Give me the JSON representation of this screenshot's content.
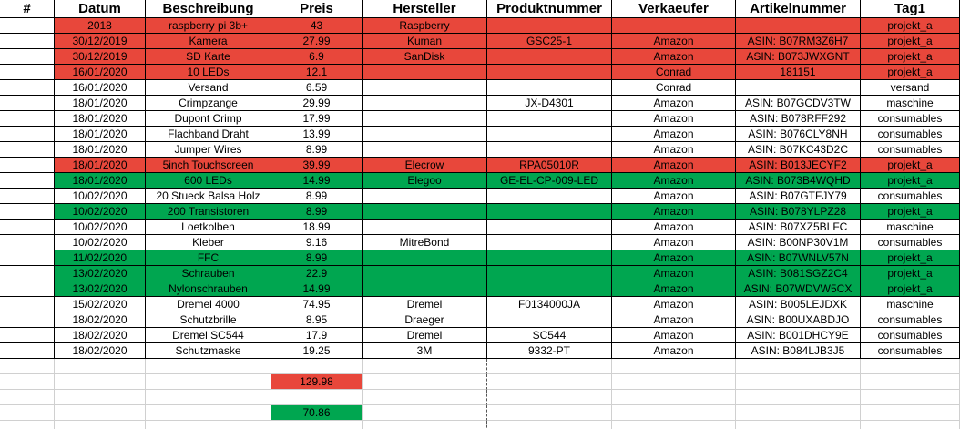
{
  "header": [
    "#",
    "Datum",
    "Beschreibung",
    "Preis",
    "Hersteller",
    "Produktnummer",
    "Verkaeufer",
    "Artikelnummer",
    "Tag1"
  ],
  "rows": [
    {
      "fill": "#e8473b",
      "cells": [
        "2018",
        "raspberry pi 3b+",
        43,
        "Raspberry",
        null,
        null,
        null,
        "projekt_a"
      ]
    },
    {
      "fill": "#e8473b",
      "cells": [
        "30/12/2019",
        "Kamera",
        27.99,
        "Kuman",
        "GSC25-1",
        "Amazon",
        "ASIN: B07RM3Z6H7",
        "projekt_a"
      ]
    },
    {
      "fill": "#e8473b",
      "cells": [
        "30/12/2019",
        "SD Karte",
        6.9,
        "SanDisk",
        null,
        "Amazon",
        "ASIN: B073JWXGNT",
        "projekt_a"
      ]
    },
    {
      "fill": "#e8473b",
      "cells": [
        "16/01/2020",
        "10 LEDs",
        12.1,
        null,
        null,
        "Conrad",
        "181151",
        "projekt_a"
      ]
    },
    {
      "fill": null,
      "cells": [
        "16/01/2020",
        "Versand",
        6.59,
        null,
        null,
        "Conrad",
        null,
        "versand"
      ]
    },
    {
      "fill": null,
      "cells": [
        "18/01/2020",
        "Crimpzange",
        29.99,
        null,
        "JX-D4301",
        "Amazon",
        "ASIN: B07GCDV3TW",
        "maschine"
      ]
    },
    {
      "fill": null,
      "cells": [
        "18/01/2020",
        "Dupont Crimp",
        17.99,
        null,
        null,
        "Amazon",
        "ASIN: B078RFF292",
        "consumables"
      ]
    },
    {
      "fill": null,
      "cells": [
        "18/01/2020",
        "Flachband Draht",
        13.99,
        null,
        null,
        "Amazon",
        "ASIN: B076CLY8NH",
        "consumables"
      ]
    },
    {
      "fill": null,
      "cells": [
        "18/01/2020",
        "Jumper Wires",
        8.99,
        null,
        null,
        "Amazon",
        "ASIN: B07KC43D2C",
        "consumables"
      ]
    },
    {
      "fill": "#e8473b",
      "cells": [
        "18/01/2020",
        "5inch Touchscreen",
        39.99,
        "Elecrow",
        "RPA05010R",
        "Amazon",
        "ASIN: B013JECYF2",
        "projekt_a"
      ]
    },
    {
      "fill": "#00a650",
      "cells": [
        "18/01/2020",
        "600 LEDs",
        14.99,
        "Elegoo",
        "GE-EL-CP-009-LED",
        "Amazon",
        "ASIN: B073B4WQHD",
        "projekt_a"
      ]
    },
    {
      "fill": null,
      "cells": [
        "10/02/2020",
        "20 Stueck Balsa Holz",
        8.99,
        null,
        null,
        "Amazon",
        "ASIN: B07GTFJY79",
        "consumables"
      ]
    },
    {
      "fill": "#00a650",
      "cells": [
        "10/02/2020",
        "200 Transistoren",
        8.99,
        null,
        null,
        "Amazon",
        "ASIN: B078YLPZ28",
        "projekt_a"
      ]
    },
    {
      "fill": null,
      "cells": [
        "10/02/2020",
        "Loetkolben",
        18.99,
        null,
        null,
        "Amazon",
        "ASIN: B07XZ5BLFC",
        "maschine"
      ]
    },
    {
      "fill": null,
      "cells": [
        "10/02/2020",
        "Kleber",
        9.16,
        "MitreBond",
        null,
        "Amazon",
        "ASIN: B00NP30V1M",
        "consumables"
      ]
    },
    {
      "fill": "#00a650",
      "cells": [
        "11/02/2020",
        "FFC",
        8.99,
        null,
        null,
        "Amazon",
        "ASIN: B07WNLV57N",
        "projekt_a"
      ]
    },
    {
      "fill": "#00a650",
      "cells": [
        "13/02/2020",
        "Schrauben",
        22.9,
        null,
        null,
        "Amazon",
        "ASIN: B081SGZ2C4",
        "projekt_a"
      ]
    },
    {
      "fill": "#00a650",
      "cells": [
        "13/02/2020",
        "Nylonschrauben",
        14.99,
        null,
        null,
        "Amazon",
        "ASIN: B07WDVW5CX",
        "projekt_a"
      ]
    },
    {
      "fill": null,
      "cells": [
        "15/02/2020",
        "Dremel 4000",
        74.95,
        "Dremel",
        "F0134000JA",
        "Amazon",
        "ASIN: B005LEJDXK",
        "maschine"
      ]
    },
    {
      "fill": null,
      "cells": [
        "18/02/2020",
        "Schutzbrille",
        8.95,
        "Draeger",
        null,
        "Amazon",
        "ASIN: B00UXABDJO",
        "consumables"
      ]
    },
    {
      "fill": null,
      "cells": [
        "18/02/2020",
        "Dremel SC544",
        17.9,
        "Dremel",
        "SC544",
        "Amazon",
        "ASIN: B001DHCY9E",
        "consumables"
      ]
    },
    {
      "fill": null,
      "cells": [
        "18/02/2020",
        "Schutzmaske",
        19.25,
        "3M",
        "9332-PT",
        "Amazon",
        "ASIN: B084LJB3J5",
        "consumables"
      ]
    }
  ],
  "totals": [
    {
      "value": 129.98,
      "fill": "#e8473b"
    },
    {
      "value": 70.86,
      "fill": "#00a650"
    }
  ]
}
